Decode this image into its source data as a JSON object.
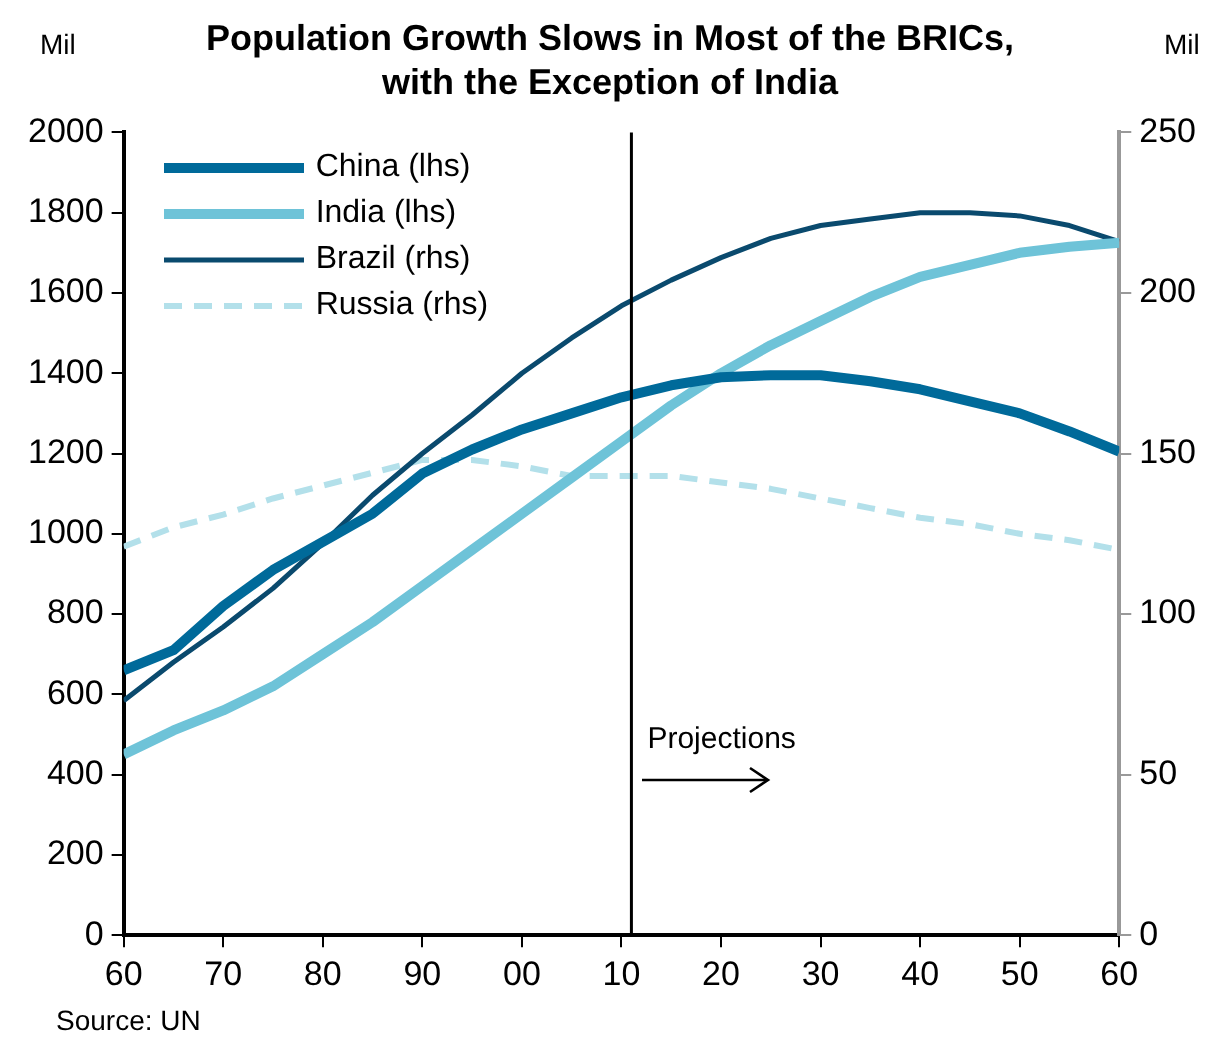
{
  "chart_data": {
    "type": "line",
    "title": "Population Growth Slows in Most of the BRICs, with the Exception of India",
    "ylabel": "Mil",
    "y2label": "Mil",
    "x": [
      1960,
      1965,
      1970,
      1975,
      1980,
      1985,
      1990,
      1995,
      2000,
      2005,
      2010,
      2015,
      2020,
      2025,
      2030,
      2035,
      2040,
      2045,
      2050,
      2055,
      2060
    ],
    "series": [
      {
        "name": "China (lhs)",
        "color": "#006a9a",
        "values": [
          660,
          710,
          820,
          910,
          980,
          1050,
          1150,
          1210,
          1260,
          1300,
          1340,
          1370,
          1390,
          1395,
          1395,
          1380,
          1360,
          1330,
          1300,
          1255,
          1205
        ]
      },
      {
        "name": "India (lhs)",
        "color": "#6ec3d8",
        "values": [
          450,
          510,
          560,
          620,
          700,
          780,
          870,
          960,
          1050,
          1140,
          1230,
          1320,
          1400,
          1470,
          1530,
          1590,
          1640,
          1670,
          1700,
          1715,
          1725
        ]
      },
      {
        "name": "Brazil (rhs)",
        "color": "#0a4a6e",
        "axis": "y2",
        "values": [
          73,
          85,
          96,
          108,
          122,
          137,
          150,
          162,
          175,
          186,
          196,
          204,
          211,
          217,
          221,
          223,
          225,
          225,
          224,
          221,
          216
        ]
      },
      {
        "name": "Russia (rhs)",
        "color": "#b3e0ea",
        "axis": "y2",
        "line_style": "dashed",
        "values": [
          121,
          127,
          131,
          136,
          140,
          144,
          148,
          148,
          146,
          143,
          143,
          143,
          141,
          139,
          136,
          133,
          130,
          128,
          125,
          123,
          120
        ]
      }
    ],
    "xlim": [
      1960,
      2060
    ],
    "xticks": [
      {
        "value": 1960,
        "label": "60"
      },
      {
        "value": 1970,
        "label": "70"
      },
      {
        "value": 1980,
        "label": "80"
      },
      {
        "value": 1990,
        "label": "90"
      },
      {
        "value": 2000,
        "label": "00"
      },
      {
        "value": 2010,
        "label": "10"
      },
      {
        "value": 2020,
        "label": "20"
      },
      {
        "value": 2030,
        "label": "30"
      },
      {
        "value": 2040,
        "label": "40"
      },
      {
        "value": 2050,
        "label": "50"
      },
      {
        "value": 2060,
        "label": "60"
      }
    ],
    "ylim": [
      0,
      2000
    ],
    "yticks": [
      0,
      200,
      400,
      600,
      800,
      1000,
      1200,
      1400,
      1600,
      1800,
      2000
    ],
    "y2lim": [
      0,
      250
    ],
    "y2ticks": [
      0,
      50,
      100,
      150,
      200,
      250
    ],
    "ref_lines": [
      {
        "axis": "x",
        "value": 2011,
        "label": "Projections",
        "color": "#000000"
      }
    ],
    "annotations": [
      "Source: UN"
    ],
    "grid": false,
    "legend": "top left",
    "marker": "none",
    "line_style": "solid"
  }
}
